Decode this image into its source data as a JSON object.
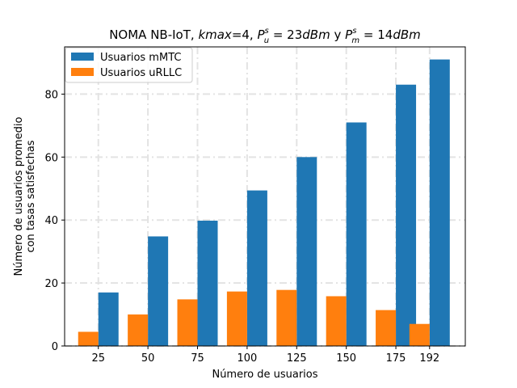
{
  "chart_data": {
    "type": "bar",
    "title_prefix": "NOMA NB-IoT, ",
    "title_kmax": "kmax",
    "title_kmax_value": "=4, ",
    "title_pu_main": "P",
    "title_pu_sup": "s",
    "title_pu_sub": "u",
    "title_pu_eq": " = 23",
    "title_pu_unit": "dBm",
    "title_conj": " y ",
    "title_pm_main": "P",
    "title_pm_sup": "s",
    "title_pm_sub": "m",
    "title_pm_eq": " = 14",
    "title_pm_unit": "dBm",
    "xlabel": "Número de usuarios",
    "ylabel_line1": "Número de usuarios promedio",
    "ylabel_line2": "con tasas satisfechas",
    "categories": [
      "25",
      "50",
      "75",
      "100",
      "125",
      "150",
      "175",
      "192"
    ],
    "x": [
      25,
      50,
      75,
      100,
      125,
      150,
      175,
      192
    ],
    "xlim": [
      8,
      210
    ],
    "ylim": [
      0,
      95
    ],
    "yticks": [
      0,
      20,
      40,
      60,
      80
    ],
    "grid": true,
    "legend_position": "top-left",
    "series": [
      {
        "name": "Usuarios mMTC",
        "color": "#1f77b4",
        "values": [
          17.0,
          34.8,
          39.8,
          49.4,
          60.0,
          71.0,
          83.0,
          91.0
        ]
      },
      {
        "name": "Usuarios uRLLC",
        "color": "#ff7f0e",
        "values": [
          4.5,
          10.0,
          14.8,
          17.3,
          17.8,
          15.8,
          11.4,
          7.0
        ]
      }
    ]
  }
}
